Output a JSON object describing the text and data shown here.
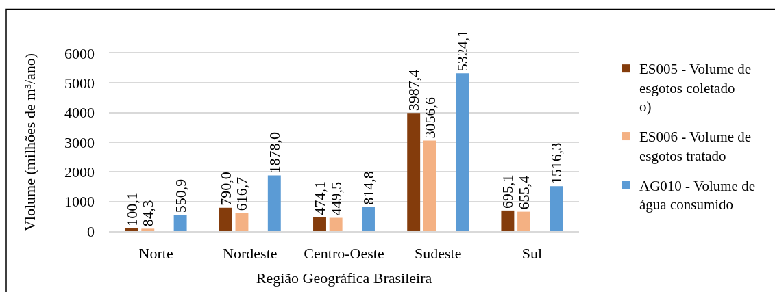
{
  "chart_data": {
    "type": "bar",
    "xlabel": "Região Geográfica Brasileira",
    "ylabel": "Vlolume (milhões de m³/ano)",
    "categories": [
      "Norte",
      "Nordeste",
      "Centro-Oeste",
      "Sudeste",
      "Sul"
    ],
    "series": [
      {
        "name": "ES005 - Volume de esgotos coletado o)",
        "color": "#843c0c",
        "values": [
          100.1,
          790.0,
          474.1,
          3987.4,
          695.1
        ],
        "value_labels": [
          "100,1",
          "790,0",
          "474,1",
          "3987,4",
          "695,1"
        ]
      },
      {
        "name": "ES006 - Volume de esgotos tratado",
        "color": "#f4b183",
        "values": [
          84.3,
          616.7,
          449.5,
          3056.6,
          655.4
        ],
        "value_labels": [
          "84,3",
          "616,7",
          "449,5",
          "3056,6",
          "655,4"
        ]
      },
      {
        "values": [
          null,
          null,
          null,
          null,
          null
        ]
      },
      {
        "name": "AG010 - Volume de água consumido",
        "color": "#5b9bd5",
        "values": [
          550.9,
          1878.0,
          814.8,
          5324.1,
          1516.3
        ],
        "value_labels": [
          "550,9",
          "1878,0",
          "814,8",
          "5324,1",
          "1516,3"
        ]
      }
    ],
    "ylim": [
      0,
      6000
    ],
    "yticks": [
      0,
      1000,
      2000,
      3000,
      4000,
      5000,
      6000
    ],
    "grid": "y",
    "legend": "right"
  }
}
